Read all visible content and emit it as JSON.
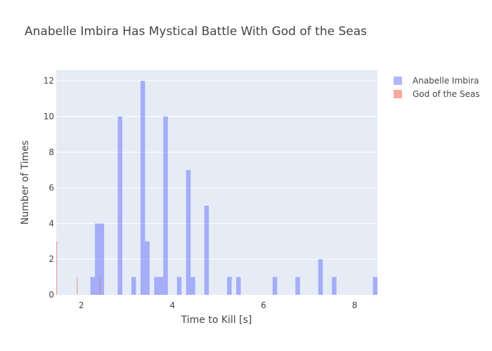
{
  "chart_data": {
    "type": "histogram",
    "title": "Anabelle Imbira Has Mystical Battle With God of the Seas",
    "xlabel": "Time to Kill [s]",
    "ylabel": "Number of Times",
    "xlim": [
      1.45,
      8.5
    ],
    "ylim": [
      0,
      12.6
    ],
    "xticks": [
      2,
      4,
      6,
      8
    ],
    "yticks": [
      0,
      2,
      4,
      6,
      8,
      10,
      12
    ],
    "bin_width": 0.1,
    "grid": true,
    "legend_position": "top-right",
    "series": [
      {
        "name": "Anabelle Imbira",
        "color": "#636efa",
        "opacity": 0.5,
        "bins": [
          {
            "x": 2.2,
            "y": 1
          },
          {
            "x": 2.3,
            "y": 4
          },
          {
            "x": 2.4,
            "y": 4
          },
          {
            "x": 2.8,
            "y": 10
          },
          {
            "x": 3.1,
            "y": 1
          },
          {
            "x": 3.3,
            "y": 12
          },
          {
            "x": 3.4,
            "y": 3
          },
          {
            "x": 3.6,
            "y": 1
          },
          {
            "x": 3.7,
            "y": 1
          },
          {
            "x": 3.8,
            "y": 10
          },
          {
            "x": 4.1,
            "y": 1
          },
          {
            "x": 4.3,
            "y": 7
          },
          {
            "x": 4.4,
            "y": 1
          },
          {
            "x": 4.7,
            "y": 5
          },
          {
            "x": 5.2,
            "y": 1
          },
          {
            "x": 5.4,
            "y": 1
          },
          {
            "x": 6.2,
            "y": 1
          },
          {
            "x": 6.7,
            "y": 1
          },
          {
            "x": 7.2,
            "y": 2
          },
          {
            "x": 7.5,
            "y": 1
          },
          {
            "x": 8.4,
            "y": 1
          }
        ]
      },
      {
        "name": "God of the Seas",
        "color": "#ef553b",
        "opacity": 0.5,
        "bins": [
          {
            "x": 1.45,
            "y": 3
          },
          {
            "x": 1.9,
            "y": 1
          },
          {
            "x": 2.4,
            "y": 1
          }
        ]
      }
    ]
  }
}
